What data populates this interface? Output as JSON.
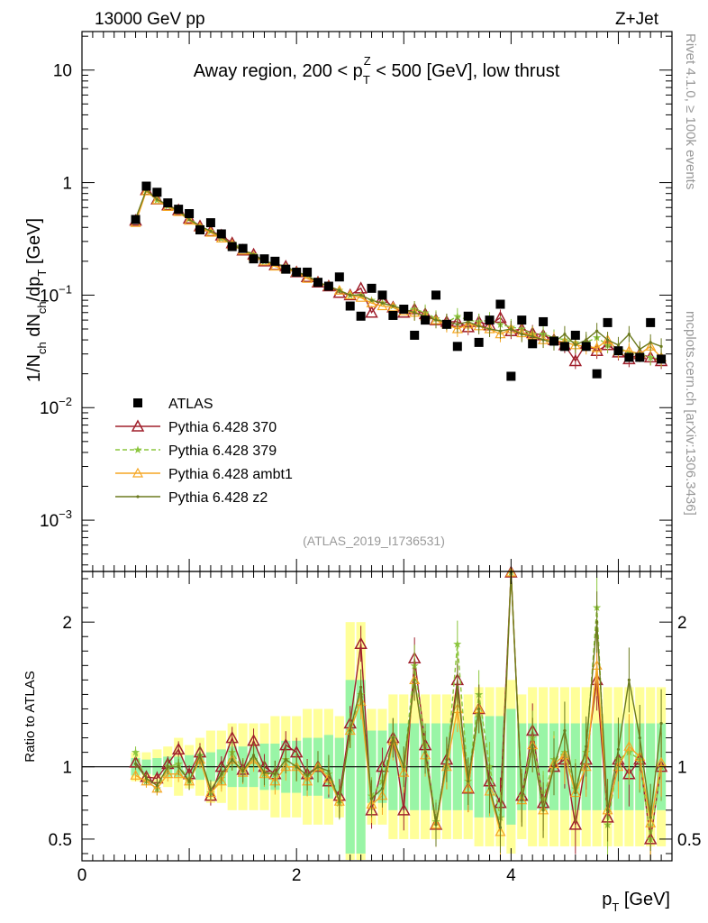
{
  "header": {
    "left": "13000 GeV pp",
    "right": "Z+Jet",
    "side_top": "Rivet 4.1.0, ≥ 100k events",
    "side_bottom": "mcplots.cern.ch [arXiv:1306.3436]",
    "analysis": "(ATLAS_2019_I1736531)"
  },
  "colors": {
    "atlas": "#000000",
    "p370": "#a0202c",
    "p379": "#8cc63e",
    "ambt1": "#f5a623",
    "z2": "#6b7a1e",
    "band_yellow": "#ffff99",
    "band_green": "#99f5a6"
  },
  "chart_data": [
    {
      "type": "scatter",
      "panel": "main",
      "title": "Away region, 200 < p_T^Z < 500 [GeV], low thrust",
      "title_parts": [
        "Away region, 200 < p",
        "T",
        "Z",
        " < 500 [GeV], low thrust"
      ],
      "ylabel": "1/N_ch dN_ch/dp_T [GeV]",
      "ylabel_parts": [
        "1/N",
        "ch",
        " dN",
        "ch",
        "/dp",
        "T",
        " [GeV]"
      ],
      "xlabel": "p_T [GeV]",
      "xlabel_parts": [
        "p",
        "T",
        " [GeV]"
      ],
      "xlim": [
        0,
        5.5
      ],
      "ylim": [
        0.00035,
        22
      ],
      "yscale": "log",
      "yticks": [
        {
          "v": 10,
          "b": "10",
          "e": ""
        },
        {
          "v": 1,
          "b": "1",
          "e": ""
        },
        {
          "v": 0.1,
          "b": "10",
          "e": "−1"
        },
        {
          "v": 0.01,
          "b": "10",
          "e": "−2"
        },
        {
          "v": 0.001,
          "b": "10",
          "e": "−3"
        }
      ],
      "legend": [
        "ATLAS",
        "Pythia 6.428 370",
        "Pythia 6.428 379",
        "Pythia 6.428 ambt1",
        "Pythia 6.428 z2"
      ],
      "x": [
        0.5,
        0.6,
        0.7,
        0.8,
        0.9,
        1.0,
        1.1,
        1.2,
        1.3,
        1.4,
        1.5,
        1.6,
        1.7,
        1.8,
        1.9,
        2.0,
        2.1,
        2.2,
        2.3,
        2.4,
        2.5,
        2.6,
        2.7,
        2.8,
        2.9,
        3.0,
        3.1,
        3.2,
        3.3,
        3.4,
        3.5,
        3.6,
        3.7,
        3.8,
        3.9,
        4.0,
        4.1,
        4.2,
        4.3,
        4.4,
        4.5,
        4.6,
        4.7,
        4.8,
        4.9,
        5.0,
        5.1,
        5.2,
        5.3,
        5.4
      ],
      "atlas": [
        0.47,
        0.93,
        0.82,
        0.66,
        0.58,
        0.53,
        0.38,
        0.44,
        0.35,
        0.27,
        0.26,
        0.21,
        0.21,
        0.2,
        0.17,
        0.16,
        0.16,
        0.13,
        0.12,
        0.145,
        0.08,
        0.065,
        0.115,
        0.1,
        0.066,
        0.075,
        0.044,
        0.06,
        0.1,
        0.055,
        0.035,
        0.065,
        0.038,
        0.06,
        0.083,
        0.019,
        0.06,
        0.037,
        0.058,
        0.039,
        0.035,
        0.044,
        0.035,
        0.02,
        0.057,
        0.032,
        0.028,
        0.028,
        0.057,
        0.027
      ],
      "series": [
        {
          "name": "Pythia 6.428 370",
          "values": [
            0.46,
            0.86,
            0.71,
            0.63,
            0.57,
            0.48,
            0.41,
            0.37,
            0.34,
            0.29,
            0.25,
            0.23,
            0.2,
            0.185,
            0.18,
            0.16,
            0.145,
            0.13,
            0.12,
            0.105,
            0.1,
            0.115,
            0.07,
            0.095,
            0.078,
            0.07,
            0.075,
            0.068,
            0.06,
            0.058,
            0.058,
            0.052,
            0.058,
            0.054,
            0.063,
            0.048,
            0.05,
            0.046,
            0.044,
            0.04,
            0.036,
            0.026,
            0.037,
            0.032,
            0.036,
            0.031,
            0.027,
            0.03,
            0.028,
            0.026
          ]
        },
        {
          "name": "Pythia 6.428 379",
          "values": [
            0.47,
            0.85,
            0.7,
            0.62,
            0.56,
            0.48,
            0.41,
            0.37,
            0.32,
            0.29,
            0.26,
            0.23,
            0.2,
            0.19,
            0.18,
            0.16,
            0.15,
            0.13,
            0.12,
            0.11,
            0.1,
            0.1,
            0.09,
            0.085,
            0.08,
            0.075,
            0.075,
            0.07,
            0.062,
            0.057,
            0.065,
            0.06,
            0.058,
            0.06,
            0.055,
            0.052,
            0.05,
            0.045,
            0.045,
            0.042,
            0.04,
            0.038,
            0.038,
            0.042,
            0.036,
            0.034,
            0.031,
            0.03,
            0.028,
            0.027
          ]
        },
        {
          "name": "Pythia 6.428 ambt1",
          "values": [
            0.44,
            0.84,
            0.7,
            0.61,
            0.55,
            0.46,
            0.4,
            0.36,
            0.32,
            0.28,
            0.25,
            0.22,
            0.2,
            0.18,
            0.17,
            0.16,
            0.14,
            0.13,
            0.12,
            0.11,
            0.1,
            0.095,
            0.085,
            0.08,
            0.078,
            0.072,
            0.07,
            0.065,
            0.06,
            0.055,
            0.05,
            0.055,
            0.053,
            0.05,
            0.045,
            0.05,
            0.046,
            0.044,
            0.04,
            0.04,
            0.038,
            0.036,
            0.035,
            0.034,
            0.04,
            0.032,
            0.032,
            0.03,
            0.035,
            0.028
          ]
        },
        {
          "name": "Pythia 6.428 z2",
          "values": [
            0.48,
            0.86,
            0.71,
            0.63,
            0.56,
            0.47,
            0.41,
            0.37,
            0.33,
            0.28,
            0.25,
            0.23,
            0.2,
            0.19,
            0.18,
            0.16,
            0.15,
            0.13,
            0.12,
            0.11,
            0.1,
            0.1,
            0.09,
            0.085,
            0.08,
            0.075,
            0.07,
            0.065,
            0.06,
            0.058,
            0.055,
            0.058,
            0.053,
            0.05,
            0.048,
            0.05,
            0.045,
            0.043,
            0.04,
            0.038,
            0.045,
            0.036,
            0.04,
            0.048,
            0.04,
            0.036,
            0.045,
            0.033,
            0.038,
            0.035
          ]
        }
      ]
    },
    {
      "type": "line",
      "panel": "ratio",
      "ylabel": "Ratio to ATLAS",
      "xlabel": "p_T [GeV]",
      "xlim": [
        0,
        5.5
      ],
      "ylim": [
        0.35,
        2.35
      ],
      "xticks": [
        "0",
        "2",
        "4"
      ],
      "yticks": [
        "0.5",
        "1",
        "2"
      ],
      "band_green_halfwidth": [
        0.06,
        0.05,
        0.06,
        0.07,
        0.07,
        0.08,
        0.09,
        0.1,
        0.12,
        0.14,
        0.14,
        0.14,
        0.16,
        0.16,
        0.18,
        0.18,
        0.2,
        0.2,
        0.22,
        0.2,
        0.6,
        0.6,
        0.25,
        0.25,
        0.3,
        0.3,
        0.3,
        0.3,
        0.3,
        0.3,
        0.3,
        0.3,
        0.35,
        0.35,
        0.35,
        0.4,
        0.3,
        0.3,
        0.3,
        0.3,
        0.3,
        0.3,
        0.3,
        0.3,
        0.3,
        0.3,
        0.3,
        0.3,
        0.3,
        0.3
      ],
      "band_yellow_halfwidth": [
        0.1,
        0.1,
        0.12,
        0.14,
        0.2,
        0.15,
        0.2,
        0.25,
        0.25,
        0.3,
        0.3,
        0.3,
        0.3,
        0.35,
        0.35,
        0.35,
        0.4,
        0.4,
        0.4,
        0.35,
        1.0,
        1.0,
        0.4,
        0.4,
        0.5,
        0.5,
        0.5,
        0.5,
        0.5,
        0.5,
        0.5,
        0.5,
        0.55,
        0.55,
        0.55,
        0.6,
        0.5,
        0.55,
        0.55,
        0.55,
        0.55,
        0.55,
        0.55,
        0.55,
        0.55,
        0.55,
        0.55,
        0.55,
        0.55,
        0.55
      ],
      "ratios": [
        {
          "name": "Pythia 6.428 370",
          "values": [
            1.03,
            0.93,
            0.92,
            1.02,
            1.12,
            0.95,
            1.1,
            0.8,
            1.0,
            1.2,
            0.98,
            1.18,
            1.0,
            0.95,
            1.15,
            1.1,
            0.95,
            1.0,
            0.9,
            0.8,
            1.3,
            1.85,
            0.7,
            1.0,
            1.2,
            0.7,
            1.75,
            1.15,
            0.6,
            1.05,
            1.6,
            0.85,
            1.4,
            0.9,
            0.75,
            2.4,
            0.8,
            1.25,
            0.75,
            1.0,
            1.05,
            0.6,
            1.05,
            1.6,
            0.65,
            1.05,
            0.95,
            1.05,
            0.5,
            1.0
          ]
        },
        {
          "name": "Pythia 6.428 379",
          "values": [
            1.1,
            0.9,
            0.85,
            1.0,
            1.02,
            0.9,
            1.08,
            0.82,
            0.92,
            1.1,
            0.98,
            1.05,
            0.95,
            0.95,
            1.05,
            1.0,
            0.94,
            1.0,
            0.95,
            0.75,
            1.25,
            1.5,
            0.8,
            0.9,
            1.2,
            1.0,
            1.7,
            1.15,
            0.62,
            1.0,
            1.85,
            0.9,
            1.5,
            1.0,
            0.65,
            2.7,
            0.8,
            1.2,
            0.78,
            1.05,
            1.1,
            0.85,
            1.1,
            2.1,
            0.6,
            1.05,
            1.1,
            1.05,
            0.5,
            1.0
          ]
        },
        {
          "name": "Pythia 6.428 ambt1",
          "values": [
            0.94,
            0.9,
            0.85,
            0.95,
            0.95,
            0.9,
            1.05,
            0.82,
            0.9,
            1.05,
            0.96,
            1.05,
            0.95,
            0.9,
            1.0,
            1.0,
            0.9,
            1.0,
            0.92,
            0.76,
            1.25,
            1.45,
            0.74,
            0.8,
            1.18,
            0.96,
            1.6,
            1.08,
            0.6,
            1.0,
            1.4,
            0.85,
            1.4,
            0.83,
            0.55,
            2.6,
            0.77,
            1.15,
            0.7,
            1.02,
            1.08,
            0.82,
            1.0,
            1.7,
            0.7,
            1.0,
            1.14,
            1.07,
            0.61,
            1.03
          ]
        },
        {
          "name": "Pythia 6.428 z2",
          "values": [
            1.02,
            0.92,
            0.87,
            1.0,
            1.0,
            0.9,
            1.08,
            0.84,
            0.95,
            1.05,
            0.97,
            1.08,
            0.96,
            0.95,
            1.05,
            1.0,
            0.94,
            1.0,
            0.97,
            0.76,
            1.25,
            1.55,
            0.78,
            0.85,
            1.2,
            1.0,
            1.6,
            1.1,
            0.6,
            1.05,
            1.55,
            0.9,
            1.4,
            0.85,
            0.58,
            2.6,
            0.77,
            1.15,
            0.7,
            1.0,
            1.25,
            0.82,
            1.14,
            2.0,
            0.7,
            1.12,
            1.6,
            1.2,
            0.65,
            1.3
          ]
        }
      ]
    }
  ]
}
